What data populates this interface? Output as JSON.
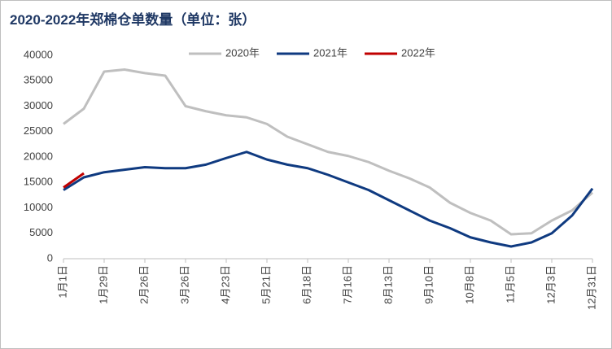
{
  "chart_data": {
    "type": "line",
    "title": "2020-2022年郑棉仓单数量（单位：张）",
    "categories": [
      "1月1日",
      null,
      "1月29日",
      null,
      "2月26日",
      null,
      "3月26日",
      null,
      "4月23日",
      null,
      "5月21日",
      null,
      "6月18日",
      null,
      "7月16日",
      null,
      "8月13日",
      null,
      "9月10日",
      null,
      "10月8日",
      null,
      "11月5日",
      null,
      "12月3日",
      null,
      "12月31日"
    ],
    "series": [
      {
        "name": "2020年",
        "color": "#bfbfbf",
        "values": [
          26500,
          29500,
          36800,
          37200,
          36500,
          36000,
          30000,
          29000,
          28200,
          27800,
          26500,
          24000,
          22500,
          21000,
          20200,
          19000,
          17300,
          15800,
          14000,
          11000,
          9000,
          7500,
          4800,
          5000,
          7500,
          9500,
          13000
        ]
      },
      {
        "name": "2021年",
        "color": "#0f3a80",
        "values": [
          13500,
          16000,
          17000,
          17500,
          18000,
          17800,
          17800,
          18500,
          19800,
          21000,
          19500,
          18500,
          17800,
          16500,
          15000,
          13500,
          11500,
          9500,
          7500,
          6000,
          4200,
          3200,
          2400,
          3200,
          5000,
          8500,
          13800
        ]
      },
      {
        "name": "2022年",
        "color": "#c00000",
        "values": [
          14000,
          16800,
          null,
          null,
          null,
          null,
          null,
          null,
          null,
          null,
          null,
          null,
          null,
          null,
          null,
          null,
          null,
          null,
          null,
          null,
          null,
          null,
          null,
          null,
          null,
          null,
          null
        ]
      }
    ],
    "ylim": [
      0,
      40000
    ],
    "yticks": [
      0,
      5000,
      10000,
      15000,
      20000,
      25000,
      30000,
      35000,
      40000
    ]
  }
}
